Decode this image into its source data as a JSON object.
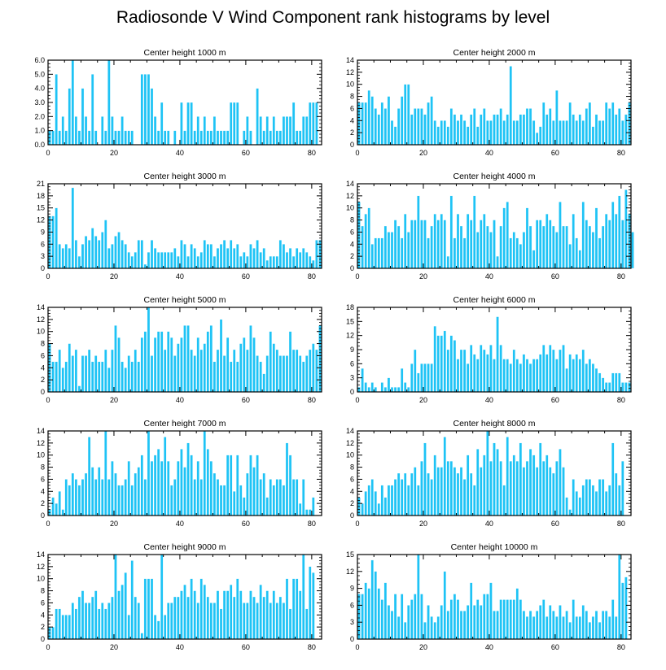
{
  "title": "Radiosonde V Wind Component rank histograms by level",
  "colors": {
    "bar": "#1ec3f5",
    "bar_edge": "#ffffff",
    "axis": "#000000"
  },
  "chart_data": [
    {
      "type": "bar",
      "title": "Center height 1000 m",
      "xlim": [
        0,
        83
      ],
      "ylim": [
        0,
        6
      ],
      "xticks": [
        0,
        20,
        40,
        60,
        80
      ],
      "yticks": [
        0,
        1,
        2,
        3,
        4,
        5,
        6
      ],
      "ytick_labels": [
        "0.0",
        "1.0",
        "2.0",
        "3.0",
        "4.0",
        "5.0",
        "6.0"
      ],
      "values": [
        1,
        1,
        5,
        1,
        2,
        1,
        4,
        6,
        2,
        1,
        4,
        2,
        1,
        5,
        1,
        0,
        2,
        1,
        6,
        2,
        1,
        1,
        2,
        1,
        1,
        1,
        0,
        0,
        5,
        5,
        5,
        4,
        2,
        1,
        3,
        1,
        1,
        0,
        1,
        0,
        3,
        1,
        3,
        3,
        1,
        2,
        1,
        2,
        1,
        1,
        2,
        1,
        1,
        1,
        1,
        3,
        3,
        3,
        0,
        1,
        2,
        1,
        0,
        4,
        2,
        1,
        2,
        1,
        2,
        1,
        1,
        2,
        2,
        2,
        3,
        1,
        1,
        2,
        2,
        3,
        3,
        3
      ]
    },
    {
      "type": "bar",
      "title": "Center height 2000 m",
      "xlim": [
        0,
        83
      ],
      "ylim": [
        0,
        14
      ],
      "xticks": [
        0,
        20,
        40,
        60,
        80
      ],
      "yticks": [
        0,
        2,
        4,
        6,
        8,
        10,
        12,
        14
      ],
      "ytick_labels": [
        "0",
        "2",
        "4",
        "6",
        "8",
        "10",
        "12",
        "14"
      ],
      "values": [
        7,
        7,
        7,
        9,
        8,
        6,
        5,
        7,
        6,
        8,
        4,
        3,
        6,
        8,
        10,
        10,
        5,
        6,
        6,
        6,
        5,
        7,
        8,
        4,
        3,
        4,
        4,
        3,
        6,
        5,
        4,
        5,
        4,
        3,
        5,
        6,
        3,
        5,
        6,
        4,
        4,
        5,
        5,
        6,
        4,
        5,
        13,
        4,
        4,
        5,
        5,
        6,
        6,
        4,
        2,
        3,
        7,
        5,
        6,
        4,
        9,
        4,
        4,
        4,
        7,
        5,
        4,
        5,
        4,
        6,
        7,
        3,
        5,
        4,
        4,
        7,
        6,
        7,
        5,
        6,
        4,
        5,
        7
      ]
    },
    {
      "type": "bar",
      "title": "Center height 3000 m",
      "xlim": [
        0,
        83
      ],
      "ylim": [
        0,
        21
      ],
      "xticks": [
        0,
        20,
        40,
        60,
        80
      ],
      "yticks": [
        0,
        3,
        6,
        9,
        12,
        15,
        18,
        21
      ],
      "ytick_labels": [
        "0",
        "3",
        "6",
        "9",
        "12",
        "15",
        "18",
        "21"
      ],
      "values": [
        13,
        13,
        15,
        6,
        5,
        6,
        5,
        20,
        7,
        3,
        6,
        8,
        7,
        10,
        8,
        7,
        9,
        12,
        5,
        6,
        8,
        9,
        7,
        6,
        4,
        3,
        4,
        7,
        7,
        1,
        4,
        7,
        5,
        4,
        4,
        4,
        4,
        4,
        5,
        3,
        7,
        6,
        3,
        6,
        5,
        3,
        4,
        7,
        6,
        6,
        3,
        5,
        6,
        7,
        5,
        7,
        5,
        6,
        3,
        4,
        3,
        6,
        5,
        7,
        4,
        5,
        2,
        3,
        3,
        3,
        7,
        6,
        4,
        5,
        3,
        5,
        4,
        5,
        4,
        3,
        2,
        7,
        7
      ]
    },
    {
      "type": "bar",
      "title": "Center height 4000 m",
      "xlim": [
        0,
        83
      ],
      "ylim": [
        0,
        14
      ],
      "xticks": [
        0,
        20,
        40,
        60,
        80
      ],
      "yticks": [
        0,
        2,
        4,
        6,
        8,
        10,
        12,
        14
      ],
      "ytick_labels": [
        "0",
        "2",
        "4",
        "6",
        "8",
        "10",
        "12",
        "14"
      ],
      "values": [
        11,
        7,
        9,
        10,
        4,
        5,
        5,
        5,
        7,
        6,
        6,
        8,
        7,
        5,
        9,
        6,
        8,
        8,
        12,
        8,
        8,
        5,
        7,
        9,
        8,
        9,
        8,
        2,
        12,
        5,
        9,
        7,
        5,
        9,
        8,
        12,
        6,
        8,
        9,
        7,
        6,
        8,
        2,
        7,
        10,
        11,
        5,
        6,
        5,
        4,
        6,
        10,
        7,
        3,
        8,
        8,
        7,
        9,
        8,
        7,
        6,
        11,
        7,
        7,
        4,
        9,
        5,
        3,
        11,
        8,
        7,
        6,
        10,
        5,
        7,
        9,
        8,
        11,
        9,
        12,
        8,
        13,
        9,
        6
      ]
    },
    {
      "type": "bar",
      "title": "Center height 5000 m",
      "xlim": [
        0,
        83
      ],
      "ylim": [
        0,
        14
      ],
      "xticks": [
        0,
        20,
        40,
        60,
        80
      ],
      "yticks": [
        0,
        2,
        4,
        6,
        8,
        10,
        12,
        14
      ],
      "ytick_labels": [
        "0",
        "2",
        "4",
        "6",
        "8",
        "10",
        "12",
        "14"
      ],
      "values": [
        8,
        5,
        5,
        7,
        4,
        5,
        8,
        6,
        7,
        1,
        6,
        6,
        7,
        5,
        6,
        5,
        5,
        7,
        4,
        7,
        11,
        9,
        5,
        4,
        6,
        5,
        7,
        5,
        9,
        10,
        14,
        6,
        9,
        10,
        10,
        7,
        10,
        9,
        6,
        8,
        9,
        11,
        11,
        7,
        6,
        9,
        7,
        8,
        10,
        11,
        5,
        7,
        12,
        6,
        9,
        5,
        7,
        5,
        8,
        9,
        7,
        11,
        9,
        6,
        5,
        3,
        6,
        10,
        8,
        7,
        6,
        6,
        6,
        10,
        7,
        7,
        6,
        5,
        6,
        7,
        8,
        7,
        11
      ]
    },
    {
      "type": "bar",
      "title": "Center height 6000 m",
      "xlim": [
        0,
        83
      ],
      "ylim": [
        0,
        18
      ],
      "xticks": [
        0,
        20,
        40,
        60,
        80
      ],
      "yticks": [
        0,
        3,
        6,
        9,
        12,
        15,
        18
      ],
      "ytick_labels": [
        "0",
        "3",
        "6",
        "9",
        "12",
        "15",
        "18"
      ],
      "values": [
        1,
        5,
        2,
        1,
        2,
        1,
        0,
        2,
        1,
        3,
        1,
        1,
        1,
        5,
        2,
        1,
        6,
        9,
        4,
        6,
        6,
        6,
        6,
        14,
        12,
        12,
        13,
        9,
        12,
        11,
        7,
        9,
        9,
        6,
        10,
        8,
        7,
        10,
        9,
        8,
        10,
        7,
        16,
        10,
        7,
        7,
        6,
        9,
        7,
        6,
        8,
        7,
        6,
        7,
        7,
        8,
        10,
        8,
        10,
        9,
        7,
        9,
        10,
        5,
        8,
        7,
        8,
        7,
        9,
        6,
        7,
        6,
        5,
        4,
        3,
        2,
        2,
        4,
        4,
        4,
        2,
        2,
        2
      ]
    },
    {
      "type": "bar",
      "title": "Center height 7000 m",
      "xlim": [
        0,
        83
      ],
      "ylim": [
        0,
        14
      ],
      "xticks": [
        0,
        20,
        40,
        60,
        80
      ],
      "yticks": [
        0,
        2,
        4,
        6,
        8,
        10,
        12,
        14
      ],
      "ytick_labels": [
        "0",
        "2",
        "4",
        "6",
        "8",
        "10",
        "12",
        "14"
      ],
      "values": [
        1,
        3,
        2,
        4,
        1,
        6,
        5,
        7,
        6,
        5,
        6,
        7,
        13,
        8,
        6,
        8,
        6,
        14,
        6,
        9,
        7,
        5,
        5,
        6,
        9,
        5,
        7,
        8,
        10,
        6,
        14,
        9,
        10,
        11,
        9,
        13,
        9,
        5,
        6,
        9,
        11,
        8,
        12,
        10,
        6,
        9,
        6,
        14,
        11,
        9,
        7,
        6,
        5,
        5,
        10,
        10,
        4,
        10,
        5,
        3,
        7,
        10,
        8,
        10,
        6,
        7,
        3,
        6,
        5,
        6,
        6,
        5,
        12,
        10,
        6,
        6,
        2,
        6,
        1,
        1,
        3
      ]
    },
    {
      "type": "bar",
      "title": "Center height 8000 m",
      "xlim": [
        0,
        83
      ],
      "ylim": [
        0,
        14
      ],
      "xticks": [
        0,
        20,
        40,
        60,
        80
      ],
      "yticks": [
        0,
        2,
        4,
        6,
        8,
        10,
        12,
        14
      ],
      "ytick_labels": [
        "0",
        "2",
        "4",
        "6",
        "8",
        "10",
        "12",
        "14"
      ],
      "values": [
        3,
        2,
        4,
        5,
        6,
        4,
        2,
        5,
        3,
        5,
        5,
        6,
        7,
        6,
        7,
        5,
        7,
        8,
        5,
        9,
        12,
        7,
        6,
        10,
        8,
        8,
        13,
        9,
        9,
        8,
        7,
        8,
        6,
        10,
        7,
        5,
        11,
        8,
        10,
        14,
        9,
        12,
        11,
        9,
        5,
        13,
        9,
        10,
        9,
        12,
        8,
        9,
        11,
        10,
        8,
        12,
        9,
        10,
        8,
        7,
        9,
        11,
        8,
        3,
        1,
        6,
        4,
        3,
        5,
        6,
        6,
        5,
        4,
        6,
        6,
        4,
        5,
        12,
        7,
        5,
        9
      ]
    },
    {
      "type": "bar",
      "title": "Center height 9000 m",
      "xlim": [
        0,
        83
      ],
      "ylim": [
        0,
        14
      ],
      "xticks": [
        0,
        20,
        40,
        60,
        80
      ],
      "yticks": [
        0,
        2,
        4,
        6,
        8,
        10,
        12,
        14
      ],
      "ytick_labels": [
        "0",
        "2",
        "4",
        "6",
        "8",
        "10",
        "12",
        "14"
      ],
      "values": [
        2,
        2,
        5,
        5,
        4,
        4,
        4,
        6,
        5,
        7,
        8,
        6,
        6,
        7,
        8,
        5,
        6,
        5,
        6,
        7,
        14,
        8,
        9,
        11,
        4,
        13,
        7,
        6,
        1,
        10,
        10,
        10,
        4,
        3,
        14,
        4,
        6,
        6,
        7,
        7,
        8,
        9,
        7,
        10,
        8,
        6,
        10,
        9,
        7,
        6,
        6,
        8,
        5,
        8,
        8,
        9,
        7,
        10,
        8,
        6,
        6,
        8,
        7,
        6,
        9,
        7,
        8,
        6,
        8,
        6,
        7,
        6,
        10,
        5,
        10,
        10,
        8,
        14,
        5,
        12,
        11
      ]
    },
    {
      "type": "bar",
      "title": "Center height 10000 m",
      "xlim": [
        0,
        83
      ],
      "ylim": [
        0,
        15
      ],
      "xticks": [
        0,
        20,
        40,
        60,
        80
      ],
      "yticks": [
        0,
        3,
        6,
        9,
        12,
        15
      ],
      "ytick_labels": [
        "0",
        "3",
        "6",
        "9",
        "12",
        "15"
      ],
      "values": [
        8,
        8,
        10,
        9,
        14,
        12,
        9,
        7,
        10,
        6,
        5,
        8,
        4,
        8,
        3,
        6,
        7,
        8,
        15,
        8,
        3,
        6,
        4,
        3,
        4,
        6,
        12,
        5,
        7,
        8,
        7,
        5,
        5,
        6,
        10,
        6,
        7,
        6,
        8,
        8,
        10,
        5,
        5,
        7,
        7,
        7,
        7,
        7,
        9,
        7,
        5,
        4,
        5,
        4,
        5,
        6,
        7,
        4,
        6,
        5,
        4,
        6,
        4,
        5,
        3,
        7,
        4,
        4,
        6,
        5,
        3,
        4,
        5,
        3,
        5,
        5,
        4,
        7,
        4,
        15,
        10,
        11
      ]
    }
  ]
}
